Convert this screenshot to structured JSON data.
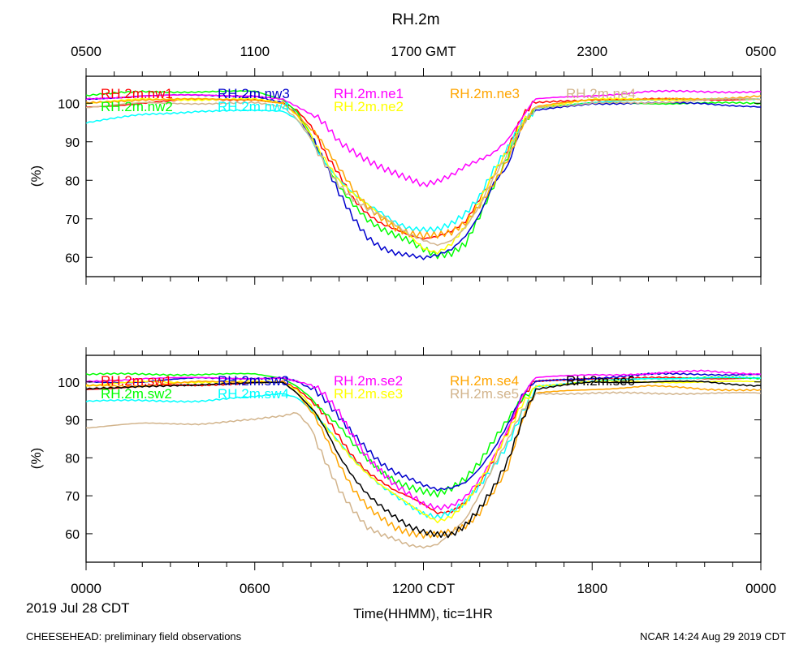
{
  "chart_data": [
    {
      "type": "line",
      "panel": "top",
      "title": "RH.2m",
      "top_axis_labels": [
        "0500",
        "1100",
        "1700 GMT",
        "2300",
        "0500"
      ],
      "ylabel": "(%)",
      "ylim": [
        55,
        107
      ],
      "yticks": [
        60,
        70,
        80,
        90,
        100
      ],
      "x_hours_range": [
        0,
        24
      ],
      "series": [
        {
          "name": "RH.2m.nw1",
          "color": "#ff0000",
          "x": [
            0,
            2,
            4,
            6,
            7,
            7.5,
            8,
            8.5,
            9,
            9.5,
            10,
            10.5,
            11,
            11.5,
            12,
            12.5,
            13,
            13.5,
            14,
            14.5,
            15,
            15.5,
            16,
            18,
            20,
            22,
            24
          ],
          "y": [
            99,
            100,
            101,
            101,
            100,
            98,
            94,
            87,
            82,
            76,
            72,
            69,
            67,
            65,
            64,
            65,
            67,
            70,
            76,
            82,
            88,
            96,
            100,
            101,
            101,
            101,
            101
          ]
        },
        {
          "name": "RH.2m.nw2",
          "color": "#00ff00",
          "x": [
            0,
            2,
            4,
            6,
            7,
            7.5,
            8,
            8.5,
            9,
            9.5,
            10,
            10.5,
            11,
            11.5,
            12,
            12.5,
            13,
            13.5,
            14,
            14.5,
            15,
            15.5,
            16,
            18,
            20,
            22,
            24
          ],
          "y": [
            102,
            103,
            103,
            103,
            101,
            98,
            92,
            85,
            78,
            73,
            69,
            67,
            66,
            65,
            63,
            61,
            61,
            63,
            70,
            78,
            86,
            95,
            99,
            100,
            100,
            100,
            100
          ]
        },
        {
          "name": "RH.2m.nw3",
          "color": "#0000cd",
          "x": [
            0,
            2,
            4,
            6,
            7,
            7.5,
            8,
            8.5,
            9,
            9.5,
            10,
            10.5,
            11,
            11.5,
            12,
            12.5,
            13,
            13.5,
            14,
            14.5,
            15,
            15.5,
            16,
            18,
            20,
            22,
            24
          ],
          "y": [
            101,
            102,
            102,
            102,
            100,
            97,
            91,
            84,
            77,
            71,
            66,
            63,
            61,
            60,
            59,
            60,
            62,
            66,
            72,
            80,
            84,
            94,
            98,
            100,
            100,
            100,
            99
          ]
        },
        {
          "name": "RH.2m.nw4",
          "color": "#00ffff",
          "x": [
            0,
            2,
            4,
            6,
            7,
            7.5,
            8,
            8.5,
            9,
            9.5,
            10,
            10.5,
            11,
            11.5,
            12,
            12.5,
            13,
            13.5,
            14,
            14.5,
            15,
            15.5,
            16,
            18,
            20,
            22,
            24
          ],
          "y": [
            95,
            97,
            98,
            98,
            98,
            96,
            91,
            85,
            80,
            76,
            73,
            71,
            69,
            68,
            68,
            68,
            69,
            71,
            75,
            82,
            88,
            95,
            99,
            100,
            101,
            101,
            101
          ]
        },
        {
          "name": "RH.2m.ne1",
          "color": "#ff00ff",
          "x": [
            0,
            2,
            4,
            6,
            7,
            7.5,
            8,
            8.5,
            9,
            9.5,
            10,
            10.5,
            11,
            11.5,
            12,
            12.5,
            13,
            13.5,
            14,
            14.5,
            15,
            15.5,
            16,
            18,
            20,
            22,
            24
          ],
          "y": [
            101,
            102,
            102,
            102,
            101,
            99,
            97,
            94,
            90,
            88,
            86,
            84,
            82,
            80,
            78,
            79,
            81,
            84,
            86,
            88,
            91,
            96,
            101,
            102,
            103,
            103,
            103
          ]
        },
        {
          "name": "RH.2m.ne2",
          "color": "#ffff00",
          "x": [
            0,
            2,
            4,
            6,
            7,
            7.5,
            8,
            8.5,
            9,
            9.5,
            10,
            10.5,
            11,
            11.5,
            12,
            12.5,
            13,
            13.5,
            14,
            14.5,
            15,
            15.5,
            16,
            18,
            20,
            22,
            24
          ],
          "y": [
            100,
            101,
            101,
            101,
            100,
            97,
            92,
            86,
            80,
            76,
            73,
            70,
            68,
            66,
            63,
            62,
            64,
            68,
            74,
            81,
            87,
            95,
            99,
            101,
            101,
            101,
            101
          ]
        },
        {
          "name": "RH.2m.ne3",
          "color": "#ffa500",
          "x": [
            0,
            2,
            4,
            6,
            7,
            7.5,
            8,
            8.5,
            9,
            9.5,
            10,
            10.5,
            11,
            11.5,
            12,
            12.5,
            13,
            13.5,
            14,
            14.5,
            15,
            15.5,
            16,
            18,
            20,
            22,
            24
          ],
          "y": [
            100,
            101,
            101,
            101,
            100,
            97,
            93,
            88,
            83,
            78,
            74,
            71,
            68,
            66,
            65,
            65,
            66,
            69,
            74,
            80,
            86,
            94,
            99,
            101,
            101,
            101,
            102
          ]
        },
        {
          "name": "RH.2m.ne4",
          "color": "#d2b48c",
          "x": [
            0,
            2,
            4,
            6,
            7,
            7.5,
            8,
            8.5,
            9,
            9.5,
            10,
            10.5,
            11,
            11.5,
            12,
            12.5,
            13,
            13.5,
            14,
            14.5,
            15,
            15.5,
            16,
            18,
            20,
            22,
            24
          ],
          "y": [
            99,
            100,
            100,
            100,
            99,
            96,
            91,
            85,
            79,
            75,
            72,
            70,
            68,
            66,
            65,
            64,
            65,
            68,
            73,
            80,
            86,
            94,
            99,
            100,
            100,
            101,
            101
          ]
        }
      ]
    },
    {
      "type": "line",
      "panel": "bottom",
      "xlabel": "Time(HHMM), tic=1HR",
      "x_tick_labels": [
        "0000",
        "0600",
        "1200 CDT",
        "1800",
        "0000"
      ],
      "ylabel": "(%)",
      "ylim": [
        52.5,
        107
      ],
      "yticks": [
        60,
        70,
        80,
        90,
        100
      ],
      "x_hours_range": [
        0,
        24
      ],
      "series": [
        {
          "name": "RH.2m.sw1",
          "color": "#ff0000",
          "x": [
            0,
            2,
            4,
            6,
            7,
            7.5,
            8,
            8.5,
            9,
            9.5,
            10,
            10.5,
            11,
            11.5,
            12,
            12.5,
            13,
            13.5,
            14,
            14.5,
            15,
            15.5,
            16,
            18,
            20,
            22,
            24
          ],
          "y": [
            98,
            99,
            99,
            100,
            100,
            98,
            95,
            91,
            86,
            81,
            77,
            74,
            71,
            69,
            67,
            65,
            66,
            69,
            74,
            80,
            87,
            95,
            100,
            101,
            101,
            101,
            101
          ]
        },
        {
          "name": "RH.2m.sw2",
          "color": "#00ff00",
          "x": [
            0,
            2,
            4,
            6,
            7,
            7.5,
            8,
            8.5,
            9,
            9.5,
            10,
            10.5,
            11,
            11.5,
            12,
            12.5,
            13,
            13.5,
            14,
            14.5,
            15,
            15.5,
            16,
            18,
            20,
            22,
            24
          ],
          "y": [
            102,
            102,
            102,
            102,
            101,
            99,
            96,
            92,
            88,
            83,
            79,
            76,
            74,
            73,
            72,
            71,
            72,
            74,
            78,
            84,
            90,
            96,
            99,
            100,
            101,
            101,
            101
          ]
        },
        {
          "name": "RH.2m.sw3",
          "color": "#0000cd",
          "x": [
            0,
            2,
            4,
            6,
            7,
            7.5,
            8,
            8.5,
            9,
            9.5,
            10,
            10.5,
            11,
            11.5,
            12,
            12.5,
            13,
            13.5,
            14,
            14.5,
            15,
            15.5,
            16,
            18,
            20,
            22,
            24
          ],
          "y": [
            100,
            100,
            101,
            101,
            101,
            100,
            98,
            95,
            91,
            87,
            83,
            79,
            76,
            74,
            72,
            71,
            72,
            74,
            78,
            83,
            89,
            96,
            100,
            101,
            102,
            102,
            102
          ]
        },
        {
          "name": "RH.2m.sw4",
          "color": "#00ffff",
          "x": [
            0,
            2,
            4,
            6,
            7,
            7.5,
            8,
            8.5,
            9,
            9.5,
            10,
            10.5,
            11,
            11.5,
            12,
            12.5,
            13,
            13.5,
            14,
            14.5,
            15,
            15.5,
            16,
            18,
            20,
            22,
            24
          ],
          "y": [
            95,
            95,
            95,
            96,
            97,
            96,
            93,
            89,
            84,
            79,
            75,
            72,
            70,
            68,
            66,
            65,
            66,
            68,
            72,
            77,
            83,
            92,
            99,
            100,
            101,
            101,
            101
          ]
        },
        {
          "name": "RH.2m.se2",
          "color": "#ff00ff",
          "x": [
            0,
            2,
            4,
            6,
            7,
            7.5,
            8,
            8.5,
            9,
            9.5,
            10,
            10.5,
            11,
            11.5,
            12,
            12.5,
            13,
            13.5,
            14,
            14.5,
            15,
            15.5,
            16,
            18,
            20,
            22,
            24
          ],
          "y": [
            100,
            101,
            101,
            101,
            101,
            100,
            99,
            96,
            92,
            86,
            81,
            77,
            73,
            70,
            67,
            66,
            67,
            70,
            75,
            81,
            88,
            96,
            101,
            102,
            102,
            103,
            102
          ]
        },
        {
          "name": "RH.2m.se3",
          "color": "#ffff00",
          "x": [
            0,
            2,
            4,
            6,
            7,
            7.5,
            8,
            8.5,
            9,
            9.5,
            10,
            10.5,
            11,
            11.5,
            12,
            12.5,
            13,
            13.5,
            14,
            14.5,
            15,
            15.5,
            16,
            18,
            20,
            22,
            24
          ],
          "y": [
            99,
            100,
            100,
            100,
            100,
            98,
            94,
            89,
            84,
            79,
            75,
            72,
            70,
            68,
            66,
            64,
            65,
            68,
            73,
            79,
            86,
            94,
            99,
            100,
            100,
            100,
            100
          ]
        },
        {
          "name": "RH.2m.se4",
          "color": "#ffa500",
          "x": [
            0,
            2,
            4,
            6,
            7,
            7.5,
            8,
            8.5,
            9,
            9.5,
            10,
            10.5,
            11,
            11.5,
            12,
            12.5,
            13,
            13.5,
            14,
            14.5,
            15,
            15.5,
            16,
            18,
            20,
            22,
            24
          ],
          "y": [
            99,
            99,
            100,
            100,
            100,
            97,
            92,
            85,
            78,
            72,
            68,
            65,
            62,
            60,
            59,
            59,
            60,
            62,
            66,
            72,
            78,
            90,
            97,
            98,
            99,
            98,
            98
          ]
        },
        {
          "name": "RH.2m.se5",
          "color": "#d2b48c",
          "x": [
            0,
            2,
            4,
            6,
            7,
            7.5,
            8,
            8.5,
            9,
            9.5,
            10,
            10.5,
            11,
            11.5,
            12,
            12.5,
            13,
            13.5,
            14,
            14.5,
            15,
            15.5,
            16,
            18,
            20,
            22,
            24
          ],
          "y": [
            88,
            89,
            89,
            90,
            91,
            92,
            88,
            80,
            72,
            66,
            61,
            59,
            58,
            57,
            57,
            58,
            61,
            64,
            70,
            77,
            84,
            92,
            97,
            97,
            97,
            97,
            97
          ]
        },
        {
          "name": "RH.2m.se6",
          "color": "#000000",
          "x": [
            0,
            2,
            4,
            6,
            7,
            7.5,
            8,
            8.5,
            9,
            9.5,
            10,
            10.5,
            11,
            11.5,
            12,
            12.5,
            13,
            13.5,
            14,
            14.5,
            15,
            15.5,
            16,
            18,
            20,
            22,
            24
          ],
          "y": [
            98,
            99,
            99,
            100,
            100,
            97,
            93,
            87,
            80,
            75,
            71,
            68,
            65,
            62,
            60,
            59,
            59,
            62,
            67,
            73,
            80,
            90,
            98,
            100,
            100,
            100,
            99
          ]
        }
      ]
    }
  ],
  "footer": {
    "date_label": "2019 Jul 28 CDT",
    "left_note": "CHEESEHEAD: preliminary field observations",
    "right_note": "NCAR 14:24 Aug 29 2019 CDT"
  }
}
